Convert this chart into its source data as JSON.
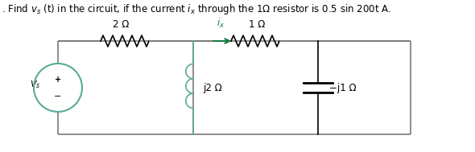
{
  "title": ". Find vₛ (t) in the circuit, if the current iₓ through the 1Ω resistor is 0.5 sin 200t A.",
  "background": "#ffffff",
  "fig_width": 5.9,
  "fig_height": 1.89,
  "dpi": 100,
  "resistor_2ohm_label": "2 Ω",
  "resistor_1ohm_label": "1 Ω",
  "inductor_label": "j2 Ω",
  "capacitor_label": "−j1 Ω",
  "source_label": "Vₛ",
  "current_label": "iₓ",
  "node_color": "#000000",
  "wire_color": "#7a7a7a",
  "arrow_color": "#1a7a40",
  "source_color": "#5aaa99",
  "coil_color": "#5aaa99"
}
